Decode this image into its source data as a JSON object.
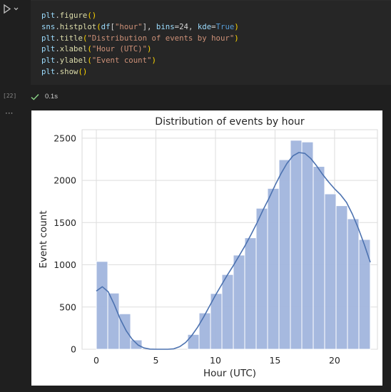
{
  "cell": {
    "run_icon": "run-chevron-icon",
    "execution_count": "[22]",
    "status_icon": "checkmark-icon",
    "duration": "0.1s",
    "output_menu_icon": "ellipsis-icon",
    "code_lines": [
      "plt.figure()",
      "sns.histplot(df[\"hour\"], bins=24, kde=True)",
      "plt.title(\"Distribution of events by hour\")",
      "plt.xlabel(\"Hour (UTC)\")",
      "plt.ylabel(\"Event count\")",
      "plt.show()"
    ]
  },
  "colors": {
    "editor_bg": "#262626",
    "page_bg": "#1f1f1f",
    "success_green": "#89d185",
    "bar_fill": "#a1b5dd",
    "kde_line": "#4c72b0"
  },
  "chart_data": {
    "type": "bar",
    "title": "Distribution of events by hour",
    "xlabel": "Hour (UTC)",
    "ylabel": "Event count",
    "bin_edges": [
      0,
      1,
      2,
      3,
      4,
      5,
      6,
      7,
      8,
      9,
      10,
      11,
      12,
      13,
      14,
      15,
      16,
      17,
      18,
      19,
      20,
      21,
      22,
      23
    ],
    "values": [
      1040,
      665,
      420,
      110,
      0,
      0,
      0,
      0,
      175,
      430,
      660,
      885,
      1115,
      1320,
      1670,
      1905,
      2245,
      2475,
      2455,
      2165,
      1840,
      1700,
      1545,
      1300
    ],
    "kde": {
      "x": [
        0,
        0.5,
        1,
        1.5,
        2,
        2.5,
        3,
        3.5,
        4,
        4.5,
        5,
        5.5,
        6,
        6.5,
        7,
        7.5,
        8,
        8.5,
        9,
        9.5,
        10,
        10.5,
        11,
        11.5,
        12,
        12.5,
        13,
        13.5,
        14,
        14.5,
        15,
        15.5,
        16,
        16.5,
        17,
        17.5,
        18,
        18.5,
        19,
        19.5,
        20,
        20.5,
        21,
        21.5,
        22,
        22.5,
        23
      ],
      "y": [
        690,
        740,
        680,
        530,
        360,
        220,
        120,
        50,
        15,
        2,
        0,
        0,
        0,
        5,
        30,
        80,
        160,
        260,
        380,
        510,
        640,
        760,
        880,
        990,
        1110,
        1230,
        1360,
        1500,
        1650,
        1790,
        1940,
        2080,
        2200,
        2290,
        2330,
        2320,
        2260,
        2170,
        2070,
        1980,
        1900,
        1830,
        1740,
        1600,
        1430,
        1240,
        1030
      ]
    },
    "xlim": [
      -1.2,
      23.6
    ],
    "ylim": [
      0,
      2600
    ],
    "xticks": [
      0,
      5,
      10,
      15,
      20
    ],
    "yticks": [
      0,
      500,
      1000,
      1500,
      2000,
      2500
    ],
    "grid": true
  }
}
